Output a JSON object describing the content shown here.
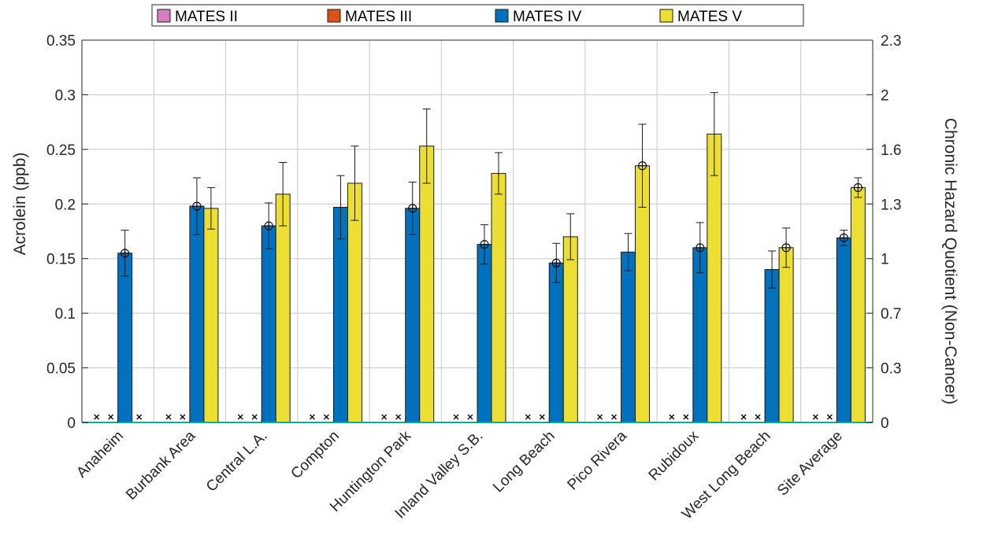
{
  "chart_data": {
    "type": "bar",
    "categories": [
      "Anaheim",
      "Burbank Area",
      "Central L.A.",
      "Compton",
      "Huntington Park",
      "Inland Valley S.B.",
      "Long Beach",
      "Pico Rivera",
      "Rubidoux",
      "West Long Beach",
      "Site Average"
    ],
    "series": [
      {
        "name": "MATES II",
        "color": "#d67fbf",
        "values": [
          0,
          0,
          0,
          0,
          0,
          0,
          0,
          0,
          0,
          0,
          0
        ],
        "err": [
          0,
          0,
          0,
          0,
          0,
          0,
          0,
          0,
          0,
          0,
          0
        ]
      },
      {
        "name": "MATES III",
        "color": "#d95319",
        "values": [
          0,
          0,
          0,
          0,
          0,
          0,
          0,
          0,
          0,
          0,
          0
        ],
        "err": [
          0,
          0,
          0,
          0,
          0,
          0,
          0,
          0,
          0,
          0,
          0
        ]
      },
      {
        "name": "MATES IV",
        "color": "#0072bd",
        "values": [
          0.155,
          0.198,
          0.18,
          0.197,
          0.196,
          0.163,
          0.146,
          0.156,
          0.16,
          0.14,
          0.169
        ],
        "err": [
          0.021,
          0.026,
          0.021,
          0.029,
          0.024,
          0.018,
          0.018,
          0.017,
          0.023,
          0.017,
          0.007
        ]
      },
      {
        "name": "MATES V",
        "color": "#edde34",
        "values": [
          null,
          0.196,
          0.209,
          0.219,
          0.253,
          0.228,
          0.17,
          0.235,
          0.264,
          0.16,
          0.215
        ],
        "err": [
          0,
          0.019,
          0.029,
          0.034,
          0.034,
          0.019,
          0.021,
          0.038,
          0.038,
          0.018,
          0.009
        ]
      }
    ],
    "hazard_markers": [
      {
        "series": "MATES IV",
        "categories": [
          "Anaheim",
          "Burbank Area",
          "Central L.A.",
          "Huntington Park",
          "Inland Valley S.B.",
          "Long Beach",
          "Rubidoux",
          "Site Average"
        ]
      },
      {
        "series": "MATES V",
        "categories": [
          "Pico Rivera",
          "West Long Beach",
          "Site Average"
        ]
      }
    ],
    "missing_markers": [
      "MATES II",
      "MATES III"
    ],
    "missing_anaheim_x": "MATES V",
    "ylabel": "Acrolein (ppb)",
    "ylim": [
      0,
      0.35
    ],
    "yticks": [
      "0",
      "0.05",
      "0.1",
      "0.15",
      "0.2",
      "0.25",
      "0.3",
      "0.35"
    ],
    "y2label": "Chronic Hazard Quotient (Non-Cancer)",
    "y2ticks": [
      "0",
      "0.3",
      "0.7",
      "1",
      "1.3",
      "1.6",
      "2",
      "2.3"
    ],
    "grid": true,
    "legend_position": "top"
  }
}
